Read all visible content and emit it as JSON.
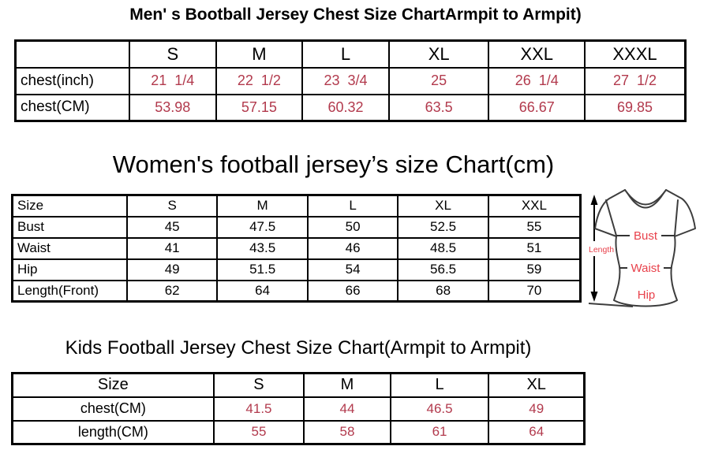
{
  "colors": {
    "table_value_red": "#b23a4d",
    "shirt_label_red": "#e8414b",
    "border_black": "#000000",
    "shirt_outline_gray": "#3d3d3d"
  },
  "sections": {
    "men": {
      "title": "Men' s Bootball Jersey Chest Size ChartArmpit to Armpit)",
      "table": {
        "header": [
          "",
          "S",
          "M",
          "L",
          "XL",
          "XXL",
          "XXXL"
        ],
        "rows": [
          {
            "label": "chest(inch)",
            "values": [
              "21  1/4",
              "22  1/2",
              "23  3/4",
              "25",
              "26  1/4",
              "27  1/2"
            ]
          },
          {
            "label": "chest(CM)",
            "values": [
              "53.98",
              "57.15",
              "60.32",
              "63.5",
              "66.67",
              "69.85"
            ]
          }
        ]
      }
    },
    "women": {
      "title": "Women's football jersey’s size Chart(cm)",
      "table": {
        "header": [
          "Size",
          "S",
          "M",
          "L",
          "XL",
          "XXL"
        ],
        "rows": [
          {
            "label": "Bust",
            "values": [
              "45",
              "47.5",
              "50",
              "52.5",
              "55"
            ]
          },
          {
            "label": "Waist",
            "values": [
              "41",
              "43.5",
              "46",
              "48.5",
              "51"
            ]
          },
          {
            "label": "Hip",
            "values": [
              "49",
              "51.5",
              "54",
              "56.5",
              "59"
            ]
          },
          {
            "label": "Length(Front)",
            "values": [
              "62",
              "64",
              "66",
              "68",
              "70"
            ]
          }
        ]
      },
      "diagram_labels": {
        "length": "Length",
        "bust": "Bust",
        "waist": "Waist",
        "hip": "Hip"
      }
    },
    "kids": {
      "title": "Kids Football Jersey Chest Size Chart(Armpit to Armpit)",
      "table": {
        "header": [
          "Size",
          "S",
          "M",
          "L",
          "XL"
        ],
        "rows": [
          {
            "label": "chest(CM)",
            "values": [
              "41.5",
              "44",
              "46.5",
              "49"
            ]
          },
          {
            "label": "length(CM)",
            "values": [
              "55",
              "58",
              "61",
              "64"
            ]
          }
        ]
      }
    }
  }
}
